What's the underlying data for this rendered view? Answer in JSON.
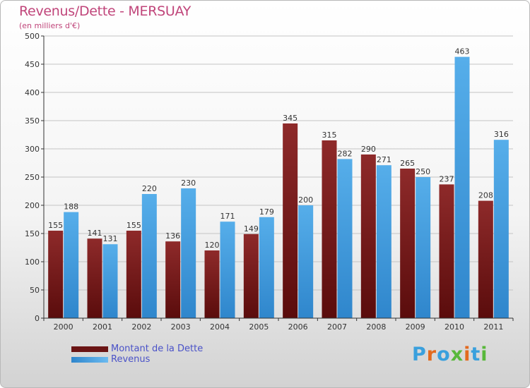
{
  "title": "Revenus/Dette - MERSUAY",
  "subtitle": "(en milliers d'€)",
  "colors": {
    "title": "#c0457a",
    "debt": "#7b1e1e",
    "revenue": "#3d9be0",
    "legend_text": "#4a52c8"
  },
  "legend": {
    "items": [
      {
        "label": "Montant de la Dette",
        "color": "#7b1e1e"
      },
      {
        "label": "Revenus",
        "color": "#3d9be0"
      }
    ]
  },
  "logo": {
    "text": "Proxiti",
    "letter_colors": [
      "#3aa0dd",
      "#e36a1e",
      "#3aa0dd",
      "#58b83a",
      "#e36a1e",
      "#3aa0dd",
      "#58b83a"
    ]
  },
  "chart_data": {
    "type": "bar",
    "title": "Revenus/Dette - MERSUAY",
    "subtitle": "(en milliers d'€)",
    "categories": [
      "2000",
      "2001",
      "2002",
      "2003",
      "2004",
      "2005",
      "2006",
      "2007",
      "2008",
      "2009",
      "2010",
      "2011"
    ],
    "series": [
      {
        "name": "Montant de la Dette",
        "values": [
          155,
          141,
          155,
          136,
          120,
          149,
          345,
          315,
          290,
          265,
          237,
          208
        ]
      },
      {
        "name": "Revenus",
        "values": [
          188,
          131,
          220,
          230,
          171,
          179,
          200,
          282,
          271,
          250,
          463,
          316
        ]
      }
    ],
    "yticks": [
      0,
      50,
      100,
      150,
      200,
      250,
      300,
      350,
      400,
      450,
      500
    ],
    "ylim": [
      0,
      500
    ],
    "grid": true,
    "legend_position": "bottom-left"
  }
}
